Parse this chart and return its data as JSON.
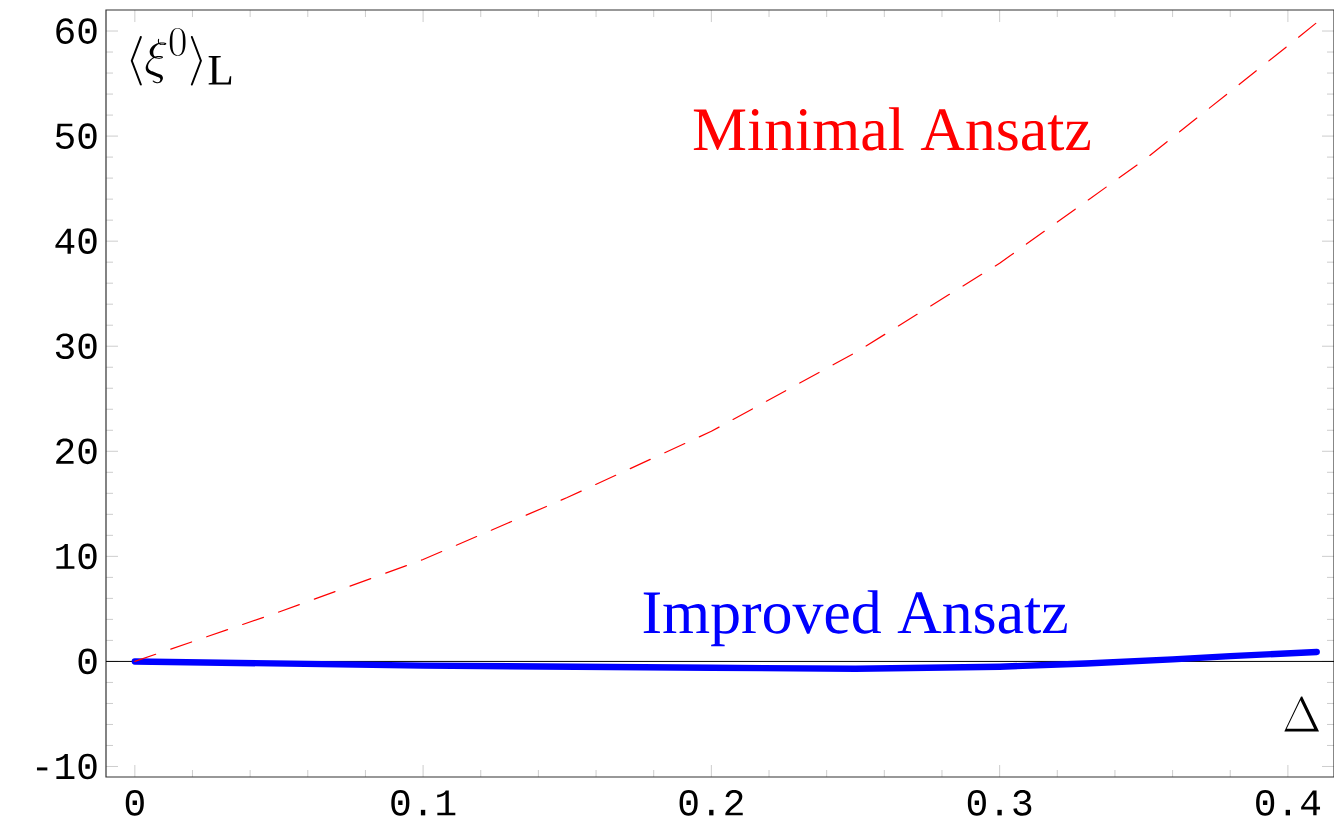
{
  "chart_data": {
    "type": "line",
    "xlabel": "\\Delta",
    "ylabel": "\\langle\\xi^{0}\\rangle_{\\mathrm{L}}",
    "xlim": [
      -0.01,
      0.416
    ],
    "ylim": [
      -11,
      62
    ],
    "xticks": [
      0,
      0.1,
      0.2,
      0.3,
      0.4
    ],
    "yticks": [
      -10,
      0,
      10,
      20,
      30,
      40,
      50,
      60
    ],
    "grid": false,
    "marker": "none",
    "series": [
      {
        "name": "Minimal Ansatz",
        "color": "#ff0000",
        "line_style": "dashed",
        "x": [
          0,
          0.05,
          0.1,
          0.15,
          0.2,
          0.25,
          0.3,
          0.35,
          0.4,
          0.41
        ],
        "values": [
          0,
          4.7,
          9.7,
          15.6,
          21.9,
          29.4,
          37.9,
          47.7,
          58.6,
          60.8
        ]
      },
      {
        "name": "Improved Ansatz",
        "color": "#0000ff",
        "line_style": "solid",
        "x": [
          0,
          0.05,
          0.1,
          0.15,
          0.2,
          0.25,
          0.3,
          0.33,
          0.36,
          0.38,
          0.41
        ],
        "values": [
          0,
          -0.2,
          -0.4,
          -0.5,
          -0.6,
          -0.7,
          -0.5,
          -0.2,
          0.2,
          0.5,
          0.9
        ]
      }
    ],
    "ref_lines": [
      {
        "axis": "y",
        "value": 0,
        "color": "#000000"
      }
    ]
  }
}
